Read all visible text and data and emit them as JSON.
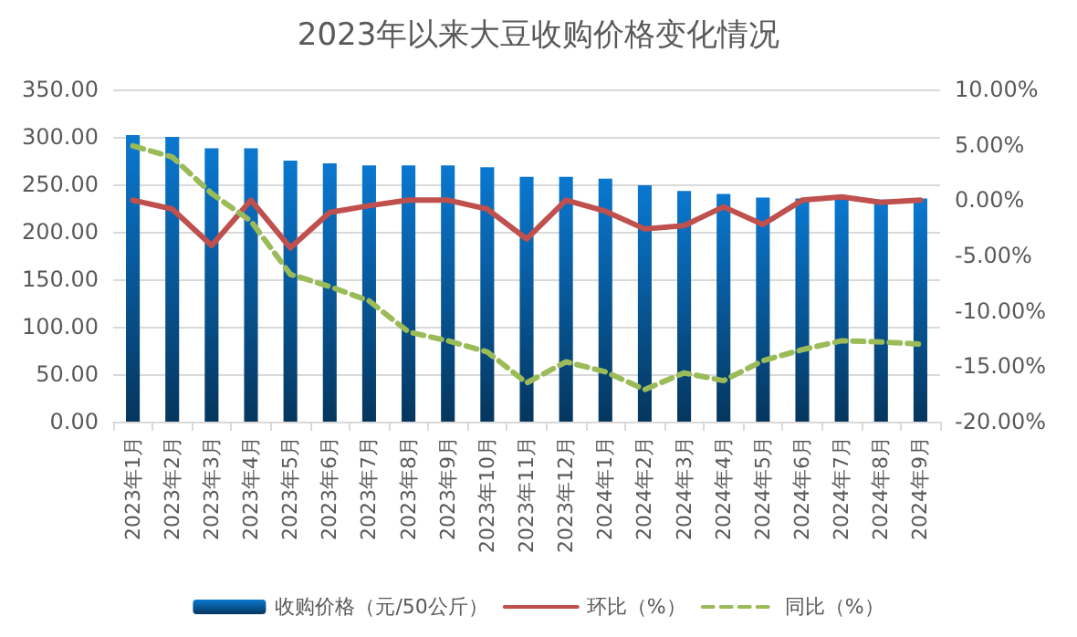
{
  "chart_data": {
    "type": "bar",
    "title": "2023年以来大豆收购价格变化情况",
    "categories": [
      "2023年1月",
      "2023年2月",
      "2023年3月",
      "2023年4月",
      "2023年5月",
      "2023年6月",
      "2023年7月",
      "2023年8月",
      "2023年9月",
      "2023年10月",
      "2023年11月",
      "2023年12月",
      "2024年1月",
      "2024年2月",
      "2024年3月",
      "2024年4月",
      "2024年5月",
      "2024年6月",
      "2024年7月",
      "2024年8月",
      "2024年9月"
    ],
    "series": [
      {
        "name": "收购价格（元/50公斤）",
        "color": "#0a78d0",
        "values": [
          302,
          300,
          288,
          288,
          275,
          272,
          270,
          270,
          270,
          268,
          258,
          258,
          256,
          249,
          243,
          240,
          236,
          235,
          235,
          234,
          235
        ]
      },
      {
        "name": "环比（%）",
        "type": "line",
        "axis": "y2",
        "color": "#c0504d",
        "line_style": "solid",
        "values": [
          0,
          -0.8,
          -4.1,
          0,
          -4.3,
          -1.1,
          -0.5,
          0,
          0,
          -0.8,
          -3.5,
          0,
          -1.0,
          -2.6,
          -2.3,
          -0.6,
          -2.2,
          0,
          0.3,
          -0.2,
          0
        ]
      },
      {
        "name": "同比（%）",
        "type": "line",
        "axis": "y2",
        "color": "#9bbb59",
        "line_style": "dashed",
        "values": [
          4.9,
          3.9,
          0.6,
          -1.9,
          -6.7,
          -7.8,
          -9.1,
          -11.9,
          -12.7,
          -13.7,
          -16.5,
          -14.6,
          -15.5,
          -17.1,
          -15.6,
          -16.3,
          -14.5,
          -13.5,
          -12.7,
          -12.8,
          -13.0
        ]
      }
    ],
    "ylim": [
      0,
      350
    ],
    "yticks": [
      {
        "value": 0,
        "label": "0.00"
      },
      {
        "value": 50,
        "label": "50.00"
      },
      {
        "value": 100,
        "label": "100.00"
      },
      {
        "value": 150,
        "label": "150.00"
      },
      {
        "value": 200,
        "label": "200.00"
      },
      {
        "value": 250,
        "label": "250.00"
      },
      {
        "value": 300,
        "label": "300.00"
      },
      {
        "value": 350,
        "label": "350.00"
      }
    ],
    "y2lim": [
      -20,
      10
    ],
    "y2ticks": [
      {
        "value": -20,
        "label": "-20.00%"
      },
      {
        "value": -15,
        "label": "-15.00%"
      },
      {
        "value": -10,
        "label": "-10.00%"
      },
      {
        "value": -5,
        "label": "-5.00%"
      },
      {
        "value": 0,
        "label": "0.00%"
      },
      {
        "value": 5,
        "label": "5.00%"
      },
      {
        "value": 10,
        "label": "10.00%"
      }
    ],
    "grid": "y",
    "legend": "bottom",
    "marker": "none"
  }
}
